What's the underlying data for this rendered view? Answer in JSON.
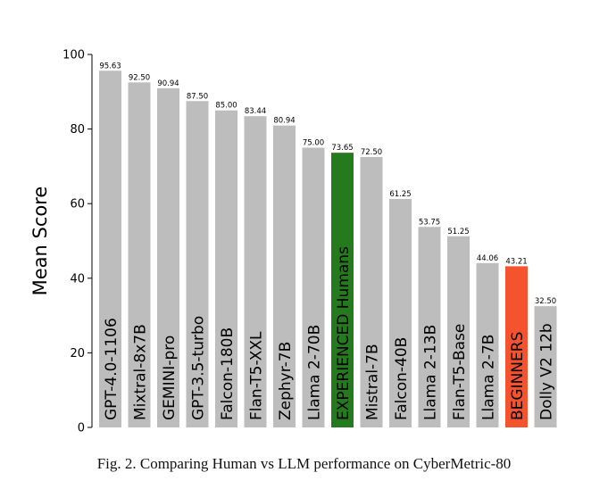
{
  "chart_data": {
    "type": "bar",
    "ylabel": "Mean Score",
    "xlabel": "",
    "ylim": [
      0,
      100
    ],
    "yticks": [
      0,
      20,
      40,
      60,
      80,
      100
    ],
    "categories": [
      "GPT-4.0-1106",
      "Mixtral-8x7B",
      "GEMINI-pro",
      "GPT-3.5-turbo",
      "Falcon-180B",
      "Flan-T5-XXL",
      "Zephyr-7B",
      "Llama 2-70B",
      "EXPERIENCED Humans",
      "Mistral-7B",
      "Falcon-40B",
      "Llama 2-13B",
      "Flan-T5-Base",
      "Llama 2-7B",
      "BEGINNERS",
      "Dolly V2 12b"
    ],
    "values": [
      95.63,
      92.5,
      90.94,
      87.5,
      85.0,
      83.44,
      80.94,
      75.0,
      73.65,
      72.5,
      61.25,
      53.75,
      51.25,
      44.06,
      43.21,
      32.5
    ],
    "value_labels": [
      "95.63",
      "92.50",
      "90.94",
      "87.50",
      "85.00",
      "83.44",
      "80.94",
      "75.00",
      "73.65",
      "72.50",
      "61.25",
      "53.75",
      "51.25",
      "44.06",
      "43.21",
      "32.50"
    ],
    "colors": [
      "#bdbdbd",
      "#bdbdbd",
      "#bdbdbd",
      "#bdbdbd",
      "#bdbdbd",
      "#bdbdbd",
      "#bdbdbd",
      "#bdbdbd",
      "#267a1e",
      "#bdbdbd",
      "#bdbdbd",
      "#bdbdbd",
      "#bdbdbd",
      "#bdbdbd",
      "#f5522e",
      "#bdbdbd"
    ],
    "grid": false
  },
  "caption": "Fig. 2.  Comparing Human vs LLM performance on CyberMetric-80"
}
